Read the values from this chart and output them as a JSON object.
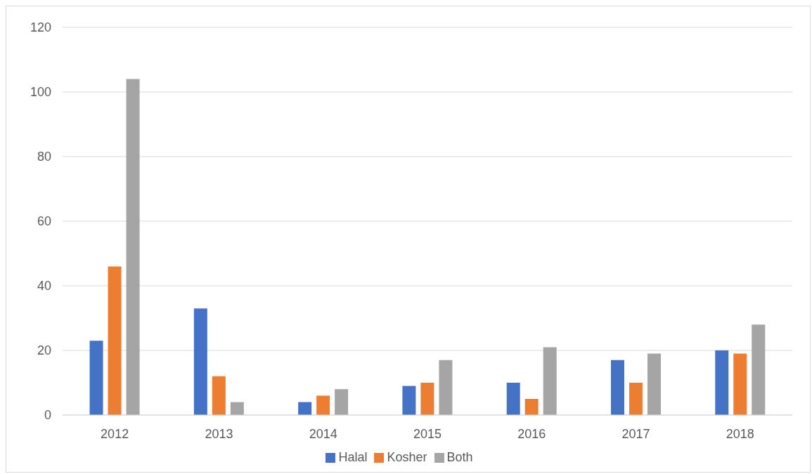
{
  "chart_data": {
    "type": "bar",
    "categories": [
      "2012",
      "2013",
      "2014",
      "2015",
      "2016",
      "2017",
      "2018"
    ],
    "series": [
      {
        "name": "Halal",
        "color": "#4472c4",
        "values": [
          23,
          33,
          4,
          9,
          10,
          17,
          20
        ]
      },
      {
        "name": "Kosher",
        "color": "#ed7d31",
        "values": [
          46,
          12,
          6,
          10,
          5,
          10,
          19
        ]
      },
      {
        "name": "Both",
        "color": "#a5a5a5",
        "values": [
          104,
          4,
          8,
          17,
          21,
          19,
          28
        ]
      }
    ],
    "ylim": [
      0,
      120
    ],
    "yticks": [
      0,
      20,
      40,
      60,
      80,
      100,
      120
    ],
    "grid": "y",
    "legend": "bottom"
  }
}
